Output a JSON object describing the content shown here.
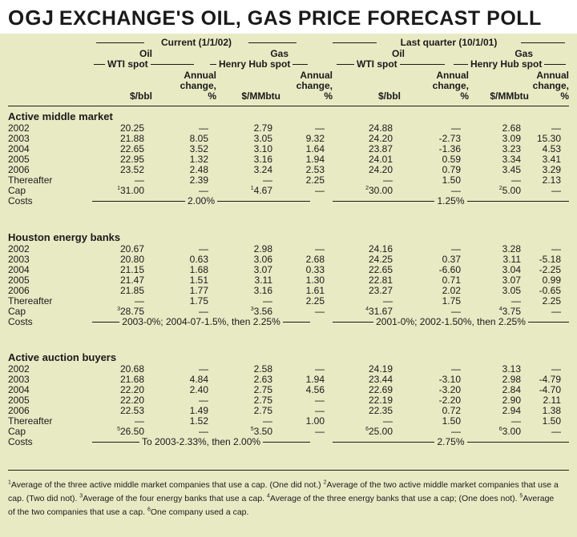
{
  "title": {
    "brand": "OGJ",
    "text": "EXCHANGE'S OIL, GAS PRICE FORECAST POLL"
  },
  "headers": {
    "current": "Current (1/1/02)",
    "last": "Last quarter (10/1/01)",
    "oil": "Oil",
    "gas": "Gas",
    "wti": "WTI spot",
    "henry": "Henry Hub spot",
    "annual1": "Annual",
    "annual2": "change,",
    "annual3": "%",
    "bbl": "$/bbl",
    "mmbtu": "$/MMbtu"
  },
  "sections": [
    {
      "name": "Active middle market",
      "rows": [
        {
          "label": "2002",
          "v": [
            "20.25",
            "—",
            "2.79",
            "—",
            "24.88",
            "—",
            "2.68",
            "—"
          ]
        },
        {
          "label": "2003",
          "v": [
            "21.88",
            "8.05",
            "3.05",
            "9.32",
            "24.20",
            "-2.73",
            "3.09",
            "15.30"
          ]
        },
        {
          "label": "2004",
          "v": [
            "22.65",
            "3.52",
            "3.10",
            "1.64",
            "23.87",
            "-1.36",
            "3.23",
            "4.53"
          ]
        },
        {
          "label": "2005",
          "v": [
            "22.95",
            "1.32",
            "3.16",
            "1.94",
            "24.01",
            "0.59",
            "3.34",
            "3.41"
          ]
        },
        {
          "label": "2006",
          "v": [
            "23.52",
            "2.48",
            "3.24",
            "2.53",
            "24.20",
            "0.79",
            "3.45",
            "3.29"
          ]
        },
        {
          "label": "Thereafter",
          "v": [
            "—",
            "2.39",
            "—",
            "2.25",
            "—",
            "1.50",
            "—",
            "2.13"
          ]
        },
        {
          "label": "Cap",
          "v": [
            "31.00",
            "—",
            "4.67",
            "—",
            "30.00",
            "—",
            "5.00",
            "—"
          ],
          "sups": [
            "1",
            "",
            "1",
            "",
            "2",
            "",
            "2",
            ""
          ]
        }
      ],
      "costs_label": "Costs",
      "costs_current": "2.00%",
      "costs_last": "1.25%"
    },
    {
      "name": "Houston energy banks",
      "rows": [
        {
          "label": "2002",
          "v": [
            "20.67",
            "—",
            "2.98",
            "—",
            "24.16",
            "—",
            "3.28",
            "—"
          ]
        },
        {
          "label": "2003",
          "v": [
            "20.80",
            "0.63",
            "3.06",
            "2.68",
            "24.25",
            "0.37",
            "3.11",
            "-5.18"
          ]
        },
        {
          "label": "2004",
          "v": [
            "21.15",
            "1.68",
            "3.07",
            "0.33",
            "22.65",
            "-6.60",
            "3.04",
            "-2.25"
          ]
        },
        {
          "label": "2005",
          "v": [
            "21.47",
            "1.51",
            "3.11",
            "1.30",
            "22.81",
            "0.71",
            "3.07",
            "0.99"
          ]
        },
        {
          "label": "2006",
          "v": [
            "21.85",
            "1.77",
            "3.16",
            "1.61",
            "23.27",
            "2.02",
            "3.05",
            "-0.65"
          ]
        },
        {
          "label": "Thereafter",
          "v": [
            "—",
            "1.75",
            "—",
            "2.25",
            "—",
            "1.75",
            "—",
            "2.25"
          ]
        },
        {
          "label": "Cap",
          "v": [
            "28.75",
            "—",
            "3.56",
            "—",
            "31.67",
            "—",
            "3.75",
            "—"
          ],
          "sups": [
            "3",
            "",
            "3",
            "",
            "4",
            "",
            "4",
            ""
          ]
        }
      ],
      "costs_label": "Costs",
      "costs_current": "2003-0%; 2004-07-1.5%, then 2.25%",
      "costs_last": "2001-0%; 2002-1.50%, then 2.25%"
    },
    {
      "name": "Active auction buyers",
      "rows": [
        {
          "label": "2002",
          "v": [
            "20.68",
            "—",
            "2.58",
            "—",
            "24.19",
            "—",
            "3.13",
            "—"
          ]
        },
        {
          "label": "2003",
          "v": [
            "21.68",
            "4.84",
            "2.63",
            "1.94",
            "23.44",
            "-3.10",
            "2.98",
            "-4.79"
          ]
        },
        {
          "label": "2004",
          "v": [
            "22.20",
            "2.40",
            "2.75",
            "4.56",
            "22.69",
            "-3.20",
            "2.84",
            "-4.70"
          ]
        },
        {
          "label": "2005",
          "v": [
            "22.20",
            "—",
            "2.75",
            "—",
            "22.19",
            "-2.20",
            "2.90",
            "2.11"
          ]
        },
        {
          "label": "2006",
          "v": [
            "22.53",
            "1.49",
            "2.75",
            "—",
            "22.35",
            "0.72",
            "2.94",
            "1.38"
          ]
        },
        {
          "label": "Thereafter",
          "v": [
            "—",
            "1.52",
            "—",
            "1.00",
            "—",
            "1.50",
            "—",
            "1.50"
          ]
        },
        {
          "label": "Cap",
          "v": [
            "26.50",
            "—",
            "3.50",
            "—",
            "25.00",
            "—",
            "3.00",
            "—"
          ],
          "sups": [
            "5",
            "",
            "5",
            "",
            "6",
            "",
            "6",
            ""
          ]
        }
      ],
      "costs_label": "Costs",
      "costs_current": "To 2003-2.33%, then 2.00%",
      "costs_last": "2.75%"
    }
  ],
  "footnotes": [
    {
      "n": "1",
      "t": "Average of the three active middle market companies that use a cap. (One did not.) "
    },
    {
      "n": "2",
      "t": "Average of the two active middle market companies that use a cap. (Two did not). "
    },
    {
      "n": "3",
      "t": "Average of the four energy banks that use a cap. "
    },
    {
      "n": "4",
      "t": "Average of the three energy banks that use a cap; (One does not). "
    },
    {
      "n": "5",
      "t": "Average of the two companies that use a cap. "
    },
    {
      "n": "6",
      "t": "One company used a cap."
    }
  ]
}
